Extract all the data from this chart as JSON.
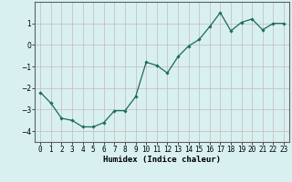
{
  "x": [
    0,
    1,
    2,
    3,
    4,
    5,
    6,
    7,
    8,
    9,
    10,
    11,
    12,
    13,
    14,
    15,
    16,
    17,
    18,
    19,
    20,
    21,
    22,
    23
  ],
  "y": [
    -2.2,
    -2.7,
    -3.4,
    -3.5,
    -3.8,
    -3.8,
    -3.6,
    -3.05,
    -3.05,
    -2.4,
    -0.8,
    -0.95,
    -1.3,
    -0.55,
    -0.05,
    0.25,
    0.85,
    1.5,
    0.65,
    1.05,
    1.2,
    0.7,
    1.0,
    1.0
  ],
  "line_color": "#1a6b5a",
  "marker": "D",
  "marker_size": 1.8,
  "line_width": 0.9,
  "bg_color": "#d8f0f0",
  "grid_color": "#c8b8b8",
  "xlabel": "Humidex (Indice chaleur)",
  "xlabel_fontsize": 6.5,
  "tick_fontsize": 5.5,
  "ylim": [
    -4.5,
    2.0
  ],
  "yticks": [
    -4,
    -3,
    -2,
    -1,
    0,
    1
  ],
  "xlim": [
    -0.5,
    23.5
  ]
}
